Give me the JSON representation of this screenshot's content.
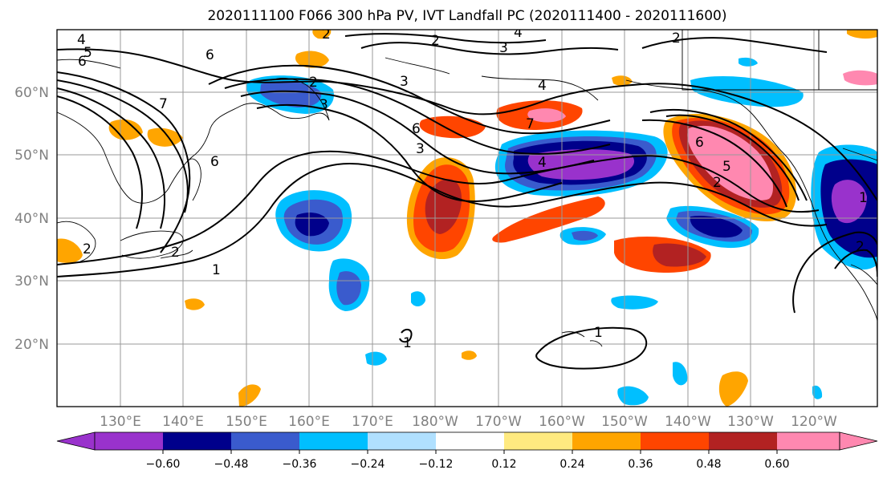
{
  "title": "2020111100 F066 300 hPa PV, IVT Landfall PC (2020111400 - 2020111600)",
  "lat_ticks": [
    "60°N",
    "50°N",
    "40°N",
    "30°N",
    "20°N"
  ],
  "lon_ticks": [
    "130°E",
    "140°E",
    "150°E",
    "160°E",
    "170°E",
    "180°W",
    "170°W",
    "160°W",
    "150°W",
    "140°W",
    "130°W",
    "120°W"
  ],
  "colorbar": {
    "colors": [
      "#9932cc",
      "#00008b",
      "#3a5bcd",
      "#00bfff",
      "#b0e0ff",
      "#ffffff",
      "#ffea80",
      "#ffa500",
      "#ff4500",
      "#b22222",
      "#ff88b0"
    ],
    "tick_labels": [
      "−0.60",
      "−0.48",
      "−0.36",
      "−0.24",
      "−0.12",
      "0.12",
      "0.24",
      "0.36",
      "0.48",
      "0.60"
    ]
  },
  "contour_labels": [
    "4",
    "5",
    "6",
    "6",
    "7",
    "6",
    "2",
    "3",
    "2",
    "1",
    "2",
    "3",
    "4",
    "7",
    "6",
    "3",
    "2",
    "4",
    "1",
    "4",
    "2",
    "1",
    "6",
    "5",
    "2",
    "1",
    "3",
    "2",
    "2"
  ]
}
